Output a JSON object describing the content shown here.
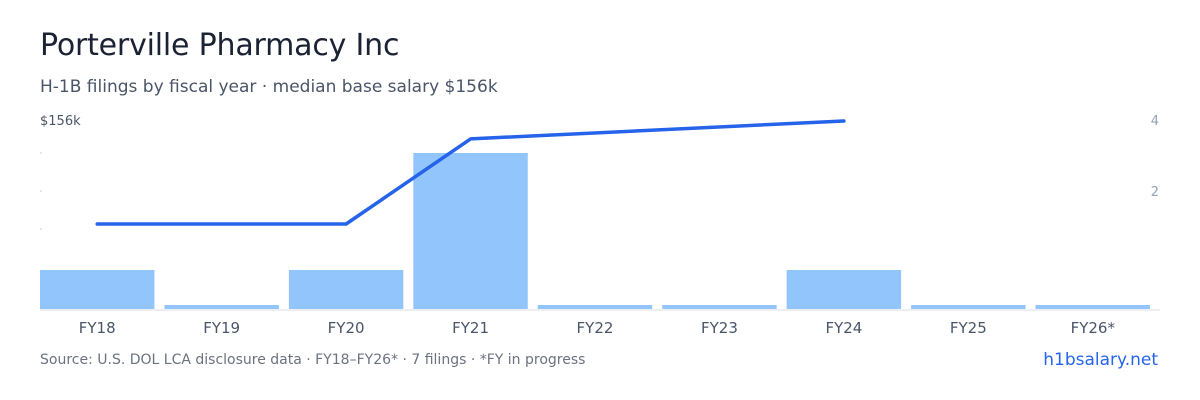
{
  "title": "Porterville Pharmacy Inc",
  "subtitle": "H-1B filings by fiscal year · median base salary $156k",
  "footer": {
    "source": "Source: U.S. DOL LCA disclosure data · FY18–FY26* · 7 filings · *FY in progress",
    "brand": "h1bsalary.net"
  },
  "colors": {
    "bar": "#93c5fd",
    "line": "#2563eb",
    "axis_text": "#4a5568",
    "right_tick": "#94a3b8",
    "baseline": "#d9dde3"
  },
  "chart_data": {
    "type": "bar",
    "categories": [
      "FY18",
      "FY19",
      "FY20",
      "FY21",
      "FY22",
      "FY23",
      "FY24",
      "FY25",
      "FY26*"
    ],
    "series": [
      {
        "type": "bar",
        "axis": "right",
        "values": [
          1,
          0,
          1,
          4,
          0,
          0,
          1,
          0,
          0
        ]
      },
      {
        "type": "line",
        "axis": "left",
        "points": [
          {
            "category": "FY18",
            "value": 133
          },
          {
            "category": "FY20",
            "value": 133
          },
          {
            "category": "FY21",
            "value": 152
          },
          {
            "category": "FY24",
            "value": 156
          }
        ]
      }
    ],
    "left_axis": {
      "tick_label": "$156k",
      "max": 156,
      "min": 110
    },
    "right_axis": {
      "ticks": [
        2,
        4
      ],
      "ylim": [
        0,
        4
      ]
    },
    "grid": false
  }
}
